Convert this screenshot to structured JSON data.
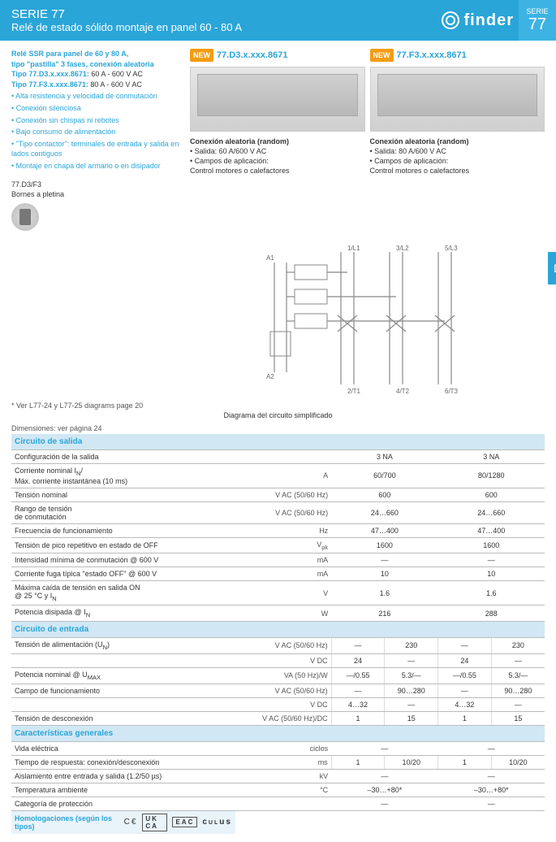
{
  "header": {
    "series": "SERIE 77",
    "subtitle": "Relé de estado sólido montaje en panel 60 - 80 A",
    "brand": "finder",
    "side_label": "SERIE",
    "side_num": "77"
  },
  "side_tab": "D",
  "intro": {
    "line1": "Relé SSR para panel de 60 y 80 A,",
    "line2": "tipo \"pastilla\" 3 fases, conexión aleatoria",
    "type1_label": "Tipo 77.D3.x.xxx.8671:",
    "type1_val": " 60 A - 600 V AC",
    "type2_label": "Tipo 77.F3.x.xxx.8671:",
    "type2_val": " 80 A - 600 V AC",
    "bullets": [
      "Alta resistencia y velocidad de conmutación",
      "Conexión silenciosa",
      "Conexión sin chispas ni rebotes",
      "Bajo consumo de alimentación",
      "\"Tipo contactor\": terminales de entrada y salida en lados contiguos",
      "Montaje en chapa del armario o en disipador"
    ]
  },
  "terminal": {
    "code": "77.D3/F3",
    "label": "Bornes a pletina"
  },
  "products": [
    {
      "new": "NEW",
      "code": "77.D3.x.xxx.8671",
      "desc_title": "Conexión aleatoria (random)",
      "desc_l1": "• Salida: 60 A/600 V AC",
      "desc_l2": "• Campos de aplicación:",
      "desc_l3": "   Control motores o calefactores"
    },
    {
      "new": "NEW",
      "code": "77.F3.x.xxx.8671",
      "desc_title": "Conexión aleatoria (random)",
      "desc_l1": "• Salida: 80 A/600 V AC",
      "desc_l2": "• Campos de aplicación:",
      "desc_l3": "   Control motores o calefactores"
    }
  ],
  "diagram": {
    "labels": {
      "a1": "A1",
      "a2": "A2",
      "l1": "1/L1",
      "l2": "3/L2",
      "l3": "5/L3",
      "t1": "2/T1",
      "t2": "4/T2",
      "t3": "6/T3"
    }
  },
  "footnotes": {
    "note1": "*  Ver L77-24 y L77-25 diagrams page 20",
    "note2": "Dimensiones: ver página 24",
    "caption": "Diagrama del circuito simplificado"
  },
  "sections": {
    "out": "Circuito de salida",
    "in": "Circuito de entrada",
    "gen": "Características generales",
    "hom": "Homologaciones (según los tipos)"
  },
  "table": {
    "rows_out": [
      {
        "label": "Configuración de la salida",
        "unit": "",
        "c1": "3 NA",
        "c2": "3 NA"
      },
      {
        "label": "Corriente nominal I<sub>N</sub>/\nMáx. corriente instantánea (10 ms)",
        "unit": "A",
        "c1": "60/700",
        "c2": "80/1280"
      },
      {
        "label": "Tensión nominal",
        "unit": "V AC (50/60 Hz)",
        "c1": "600",
        "c2": "600"
      },
      {
        "label": "Rango de tensión\nde conmutación",
        "unit": "V AC (50/60 Hz)",
        "c1": "24…660",
        "c2": "24…660"
      },
      {
        "label": "Frecuencia de funcionamiento",
        "unit": "Hz",
        "c1": "47…400",
        "c2": "47…400"
      },
      {
        "label": "Tensión de pico repetitivo en estado de OFF",
        "unit": "V<sub>pk</sub>",
        "c1": "1600",
        "c2": "1600"
      },
      {
        "label": "Intensidad mínima de conmutación @ 600 V",
        "unit": "mA",
        "c1": "—",
        "c2": "—"
      },
      {
        "label": "Corriente fuga típica \"estado OFF\" @ 600 V",
        "unit": "mA",
        "c1": "10",
        "c2": "10"
      },
      {
        "label": "Máxima caída de tensión en salida ON\n@ 25 °C y I<sub>N</sub>",
        "unit": "V",
        "c1": "1.6",
        "c2": "1.6"
      },
      {
        "label": "Potencia disipada @ I<sub>N</sub>",
        "unit": "W",
        "c1": "216",
        "c2": "288"
      }
    ],
    "rows_in_split": [
      {
        "label": "Tensión de alimentación (U<sub>N</sub>)",
        "unit": "V AC (50/60 Hz)",
        "a1": "—",
        "a2": "230",
        "b1": "—",
        "b2": "230"
      },
      {
        "label": "",
        "unit": "V DC",
        "a1": "24",
        "a2": "—",
        "b1": "24",
        "b2": "—"
      },
      {
        "label": "Potencia nominal @ U<sub>MAX</sub>",
        "unit": "VA (50 Hz)/W",
        "a1": "—/0.55",
        "a2": "5.3/—",
        "b1": "—/0.55",
        "b2": "5.3/—"
      },
      {
        "label": "Campo de funcionamiento",
        "unit": "V AC (50/60 Hz)",
        "a1": "—",
        "a2": "90…280",
        "b1": "—",
        "b2": "90…280"
      },
      {
        "label": "",
        "unit": "V DC",
        "a1": "4…32",
        "a2": "—",
        "b1": "4…32",
        "b2": "—"
      },
      {
        "label": "Tensión de desconexión",
        "unit": "V AC (50/60 Hz)/DC",
        "a1": "1",
        "a2": "15",
        "b1": "1",
        "b2": "15"
      }
    ],
    "rows_gen_split": [
      {
        "label": "Vida eléctrica",
        "unit": "ciclos",
        "a1": "—",
        "a2": "",
        "b1": "—",
        "b2": "",
        "merge": true
      },
      {
        "label": "Tiempo de respuesta: conexión/desconexión",
        "unit": "ms",
        "a1": "1",
        "a2": "10/20",
        "b1": "1",
        "b2": "10/20"
      },
      {
        "label": "Aislamiento entre entrada y salida (1.2/50 µs)",
        "unit": "kV",
        "a1": "—",
        "a2": "",
        "b1": "—",
        "b2": "",
        "merge": true
      },
      {
        "label": "Temperatura ambiente",
        "unit": "°C",
        "a1": "–30…+80*",
        "a2": "",
        "b1": "–30…+80*",
        "b2": "",
        "merge": true
      },
      {
        "label": "Categoría de protección",
        "unit": "",
        "a1": "—",
        "a2": "",
        "b1": "—",
        "b2": "",
        "merge": true
      }
    ]
  },
  "certs": [
    "CE",
    "UK CA",
    "EAC",
    "cULus"
  ]
}
